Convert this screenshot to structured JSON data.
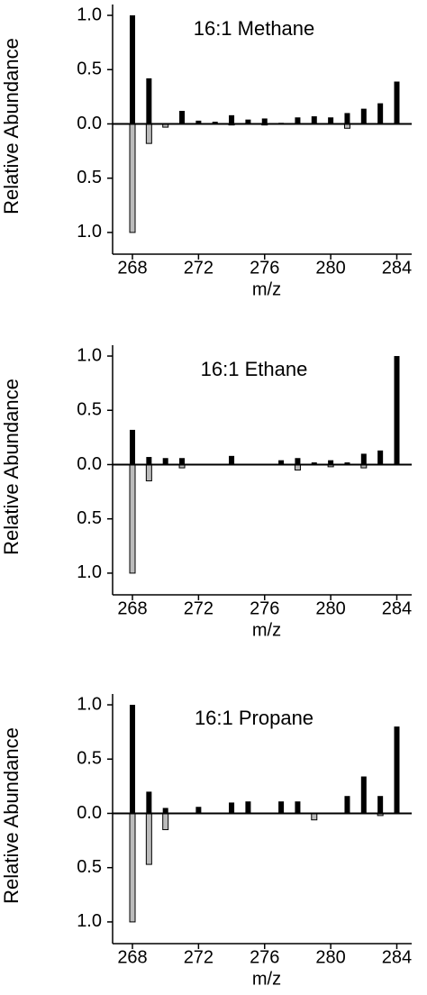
{
  "chart_data": [
    {
      "type": "bar",
      "title": "16:1 Methane",
      "x_label": "m/z",
      "y_label": "Relative Abundance",
      "x": [
        268,
        269,
        270,
        271,
        272,
        273,
        274,
        275,
        276,
        277,
        278,
        279,
        280,
        281,
        282,
        283,
        284
      ],
      "series": [
        {
          "color": "#000000",
          "values": [
            1.0,
            0.42,
            0,
            0.12,
            0.03,
            0.02,
            0.08,
            0.04,
            0.05,
            0.01,
            0.06,
            0.07,
            0.06,
            0.1,
            0.14,
            0.19,
            0.39
          ]
        },
        {
          "color": "#bbbbbb",
          "values": [
            -1.0,
            -0.18,
            -0.03,
            0,
            0,
            0,
            -0.01,
            0,
            -0.01,
            0,
            0,
            0,
            0,
            -0.04,
            0,
            0,
            0
          ]
        }
      ],
      "xlim": [
        266.8,
        284.9
      ],
      "xticks": [
        268,
        272,
        276,
        280,
        284
      ],
      "ylim": [
        -1.2,
        1.1
      ],
      "yticks": [
        {
          "value": 1,
          "label": "1.0"
        },
        {
          "value": 0.5,
          "label": "0.5"
        },
        {
          "value": 0,
          "label": "0.0"
        },
        {
          "value": -0.5,
          "label": "0.5"
        },
        {
          "value": -1,
          "label": "1.0"
        }
      ]
    },
    {
      "type": "bar",
      "title": "16:1 Ethane",
      "x_label": "m/z",
      "y_label": "Relative Abundance",
      "x": [
        268,
        269,
        270,
        271,
        272,
        273,
        274,
        275,
        276,
        277,
        278,
        279,
        280,
        281,
        282,
        283,
        284
      ],
      "series": [
        {
          "color": "#000000",
          "values": [
            0.32,
            0.07,
            0.06,
            0.06,
            0,
            0,
            0.08,
            0,
            0,
            0.04,
            0.06,
            0.02,
            0.04,
            0.02,
            0.1,
            0.13,
            1.0
          ]
        },
        {
          "color": "#bbbbbb",
          "values": [
            -1.0,
            -0.15,
            0,
            -0.03,
            0,
            0,
            0,
            0,
            0,
            0,
            -0.05,
            0,
            -0.02,
            0,
            -0.03,
            0,
            0
          ]
        }
      ],
      "xlim": [
        266.8,
        284.9
      ],
      "xticks": [
        268,
        272,
        276,
        280,
        284
      ],
      "ylim": [
        -1.2,
        1.1
      ],
      "yticks": [
        {
          "value": 1,
          "label": "1.0"
        },
        {
          "value": 0.5,
          "label": "0.5"
        },
        {
          "value": 0,
          "label": "0.0"
        },
        {
          "value": -0.5,
          "label": "0.5"
        },
        {
          "value": -1,
          "label": "1.0"
        }
      ]
    },
    {
      "type": "bar",
      "title": "16:1 Propane",
      "x_label": "m/z",
      "y_label": "Relative Abundance",
      "x": [
        268,
        269,
        270,
        271,
        272,
        273,
        274,
        275,
        276,
        277,
        278,
        279,
        280,
        281,
        282,
        283,
        284
      ],
      "series": [
        {
          "color": "#000000",
          "values": [
            1.0,
            0.2,
            0.05,
            0,
            0.06,
            0,
            0.1,
            0.11,
            0,
            0.11,
            0.11,
            0,
            0,
            0.16,
            0.34,
            0.16,
            0.8
          ]
        },
        {
          "color": "#bbbbbb",
          "values": [
            -1.0,
            -0.47,
            -0.15,
            0,
            0,
            0,
            0,
            0,
            0,
            0,
            0,
            -0.06,
            0,
            0,
            0,
            -0.02,
            0
          ]
        }
      ],
      "xlim": [
        266.8,
        284.9
      ],
      "xticks": [
        268,
        272,
        276,
        280,
        284
      ],
      "ylim": [
        -1.2,
        1.1
      ],
      "yticks": [
        {
          "value": 1,
          "label": "1.0"
        },
        {
          "value": 0.5,
          "label": "0.5"
        },
        {
          "value": 0,
          "label": "0.0"
        },
        {
          "value": -0.5,
          "label": "0.5"
        },
        {
          "value": -1,
          "label": "1.0"
        }
      ]
    }
  ]
}
